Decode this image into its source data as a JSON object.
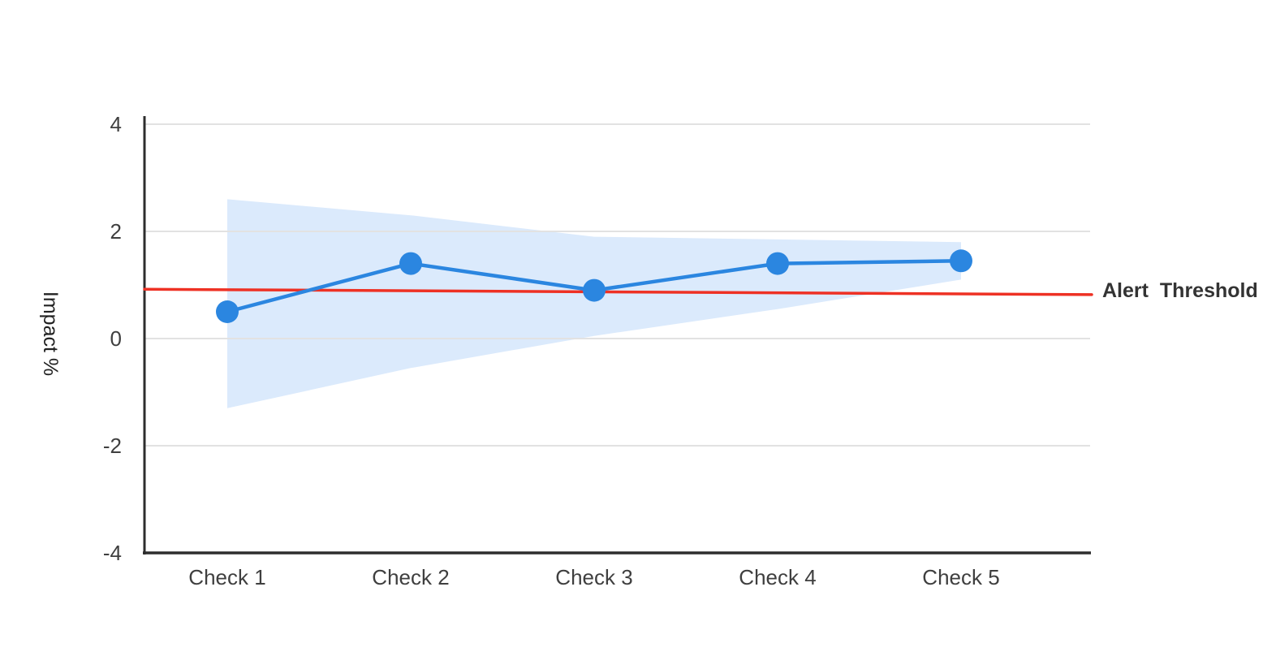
{
  "page": {
    "background": "#ffffff"
  },
  "chart_data": {
    "type": "line",
    "title": "",
    "categories": [
      "Check 1",
      "Check 2",
      "Check 3",
      "Check 4",
      "Check 5"
    ],
    "series": [
      {
        "name": "impact",
        "values": [
          0.5,
          1.4,
          0.9,
          1.4,
          1.45
        ],
        "color": "#2b86e0",
        "marker": "circle",
        "marker_radius": 14,
        "line_width": 4.5
      }
    ],
    "band": {
      "name": "confidence-band",
      "upper": [
        2.6,
        2.3,
        1.9,
        1.85,
        1.8
      ],
      "lower": [
        -1.3,
        -0.55,
        0.05,
        0.55,
        1.1
      ],
      "color": "#dbeafc"
    },
    "threshold": {
      "label": "Alert Threshold",
      "start_value": 0.92,
      "end_value": 0.82,
      "color": "#ee3124",
      "line_width": 3.5
    },
    "xlabel": "",
    "ylabel": "Impact %",
    "yticks": [
      "4",
      "2",
      "0",
      "-2",
      "-4"
    ],
    "ytick_values": [
      4,
      2,
      0,
      -2,
      -4
    ],
    "ylim": [
      -4,
      4
    ],
    "grid": true,
    "legend": "none",
    "colors": {
      "grid": "#e2e2e2",
      "axis": "#2d2d2d",
      "tick_text": "#3f3f3f",
      "label_text": "#222222"
    }
  }
}
